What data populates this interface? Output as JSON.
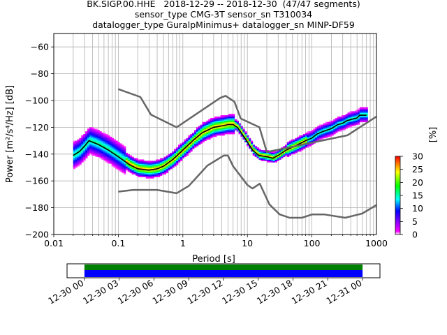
{
  "title_lines": [
    "BK.SIGP.00.HHE   2018-12-29 -- 2018-12-30  (47/47 segments)",
    "sensor_type CMG-3T sensor_sn T310034",
    "datalogger_type GuralpMinimus+ datalogger_sn MINP-DF59"
  ],
  "chart_data": {
    "type": "heatmap",
    "xlabel": "Period [s]",
    "ylabel_prefix": "Power [m",
    "ylabel": "Power [m²/s⁴/Hz] [dB]",
    "x_scale": "log",
    "xlim": [
      0.01,
      1000
    ],
    "ylim": [
      -200,
      -50
    ],
    "x_ticks": [
      0.01,
      0.1,
      1,
      10,
      100,
      1000
    ],
    "x_tick_labels": [
      "0.01",
      "0.1",
      "1",
      "10",
      "100",
      "1000"
    ],
    "y_ticks": [
      -200,
      -180,
      -160,
      -140,
      -120,
      -100,
      -80,
      -60
    ],
    "y_tick_labels": [
      "−200",
      "−180",
      "−160",
      "−140",
      "−120",
      "−100",
      "−80",
      "−60"
    ],
    "grid": true,
    "colorbar": {
      "label": "[%]",
      "ticks": [
        0,
        5,
        10,
        15,
        20,
        25,
        30
      ],
      "tick_labels": [
        "0",
        "5",
        "10",
        "15",
        "20",
        "25",
        "30"
      ],
      "range": [
        0,
        30
      ],
      "colors": [
        "#ffffff",
        "#ff00ff",
        "#0000ff",
        "#00ffff",
        "#00ff00",
        "#ffff00",
        "#ff0000"
      ]
    },
    "series": [
      {
        "role": "mode",
        "color": "#000000",
        "points": [
          [
            0.02,
            -141
          ],
          [
            0.025,
            -138
          ],
          [
            0.03,
            -134
          ],
          [
            0.035,
            -130
          ],
          [
            0.05,
            -133
          ],
          [
            0.07,
            -137
          ],
          [
            0.1,
            -142
          ],
          [
            0.15,
            -148
          ],
          [
            0.2,
            -151
          ],
          [
            0.3,
            -152
          ],
          [
            0.4,
            -151
          ],
          [
            0.5,
            -149
          ],
          [
            0.7,
            -144
          ],
          [
            1,
            -137
          ],
          [
            1.5,
            -129
          ],
          [
            2,
            -124
          ],
          [
            3,
            -120
          ],
          [
            4,
            -119
          ],
          [
            5,
            -118
          ],
          [
            6,
            -118
          ],
          [
            7,
            -120
          ],
          [
            8,
            -124
          ],
          [
            10,
            -131
          ],
          [
            12,
            -137
          ],
          [
            15,
            -141
          ],
          [
            20,
            -142
          ],
          [
            25,
            -143
          ],
          [
            30,
            -141
          ],
          [
            40,
            -137
          ],
          [
            60,
            -133
          ],
          [
            80,
            -130
          ],
          [
            100,
            -128
          ],
          [
            120,
            -125
          ],
          [
            150,
            -123
          ],
          [
            200,
            -121
          ],
          [
            250,
            -118
          ],
          [
            300,
            -117
          ],
          [
            350,
            -115
          ],
          [
            500,
            -113
          ],
          [
            550,
            -111
          ],
          [
            700,
            -111
          ]
        ]
      },
      {
        "role": "noise-model-high",
        "color": "#666666",
        "points": [
          [
            0.1,
            -91.5
          ],
          [
            0.22,
            -97.4
          ],
          [
            0.32,
            -110.5
          ],
          [
            0.8,
            -120
          ],
          [
            3.8,
            -98
          ],
          [
            4.6,
            -96.5
          ],
          [
            6.3,
            -101
          ],
          [
            7.9,
            -113.5
          ],
          [
            15.4,
            -120
          ],
          [
            20,
            -138.5
          ],
          [
            354.8,
            -126
          ],
          [
            1000,
            -112
          ]
        ]
      },
      {
        "role": "noise-model-low",
        "color": "#666666",
        "points": [
          [
            0.1,
            -168
          ],
          [
            0.17,
            -166.7
          ],
          [
            0.4,
            -166.7
          ],
          [
            0.8,
            -169.2
          ],
          [
            1.24,
            -163.7
          ],
          [
            2.4,
            -148.6
          ],
          [
            4.3,
            -141.1
          ],
          [
            5,
            -141.1
          ],
          [
            6,
            -149
          ],
          [
            10,
            -163
          ],
          [
            12,
            -165.7
          ],
          [
            15.6,
            -162.1
          ],
          [
            21.9,
            -177.5
          ],
          [
            31.6,
            -185
          ],
          [
            45,
            -187.5
          ],
          [
            70,
            -187.5
          ],
          [
            101,
            -185
          ],
          [
            154,
            -185
          ],
          [
            328,
            -187.5
          ],
          [
            600,
            -184.4
          ],
          [
            1000,
            -178
          ]
        ]
      }
    ],
    "time_coverage": {
      "tick_labels": [
        "12-30 00",
        "12-30 03",
        "12-30 06",
        "12-30 09",
        "12-30 12",
        "12-30 15",
        "12-30 18",
        "12-30 21",
        "12-31 00"
      ],
      "range_hours": [
        -1.5,
        25.5
      ],
      "data_span_hours": [
        0,
        24
      ],
      "colors": [
        "#008000",
        "#0000ff"
      ]
    }
  }
}
